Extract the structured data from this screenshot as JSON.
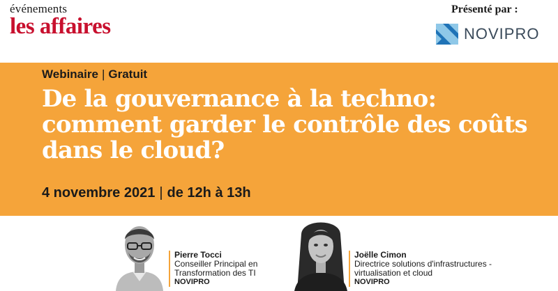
{
  "brand": {
    "events": "événements",
    "name": "les affaires"
  },
  "sponsor": {
    "presented_by": "Présenté par :",
    "name": "NOVIPRO"
  },
  "event": {
    "type": "Webinaire",
    "price": "Gratuit",
    "separator": "|",
    "title_lines": [
      "De la gouvernance à la techno:",
      "comment garder le contrôle des coûts",
      "dans le cloud?"
    ],
    "date": "4 novembre 2021",
    "time": "de 12h à 13h"
  },
  "speakers": [
    {
      "name": "Pierre Tocci",
      "role_lines": [
        "Conseiller Principal en",
        "Transformation des TI"
      ],
      "org": "NOVIPRO"
    },
    {
      "name": "Joëlle Cimon",
      "role_lines": [
        "Directrice solutions d'infrastructures -",
        "virtualisation et cloud"
      ],
      "org": "NOVIPRO"
    }
  ],
  "colors": {
    "accent": "#f5a43a",
    "brand_red": "#c8102e",
    "title_text": "#ffffff"
  },
  "icons": {
    "sponsor_logo": "novipro-logo-icon"
  }
}
